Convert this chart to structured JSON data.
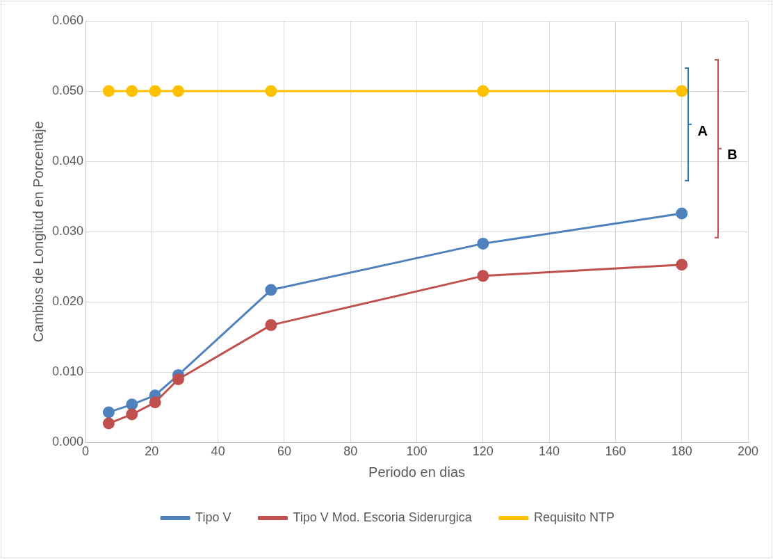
{
  "chart_data": {
    "type": "line",
    "xlabel": "Periodo en dias",
    "ylabel": "Cambios de Longitud en Porcentaje",
    "x": [
      7,
      14,
      21,
      28,
      56,
      120,
      180
    ],
    "series": [
      {
        "name": "Tipo V",
        "color": "#4f81bd",
        "values": [
          0.0043,
          0.0054,
          0.0067,
          0.0096,
          0.0217,
          0.0283,
          0.0326
        ]
      },
      {
        "name": "Tipo V Mod. Escoria Siderurgica",
        "color": "#c0504d",
        "values": [
          0.0027,
          0.004,
          0.0057,
          0.009,
          0.0167,
          0.0237,
          0.0253
        ]
      },
      {
        "name": "Requisito NTP",
        "color": "#ffc000",
        "values": [
          0.05,
          0.05,
          0.05,
          0.05,
          0.05,
          0.05,
          0.05
        ]
      }
    ],
    "xlim": [
      0,
      200
    ],
    "xticks": [
      0,
      20,
      40,
      60,
      80,
      100,
      120,
      140,
      160,
      180,
      200
    ],
    "ylim": [
      0,
      0.06
    ],
    "yticks": [
      {
        "value": 0,
        "label": "0.000"
      },
      {
        "value": 0.01,
        "label": "0.010"
      },
      {
        "value": 0.02,
        "label": "0.020"
      },
      {
        "value": 0.03,
        "label": "0.030"
      },
      {
        "value": 0.04,
        "label": "0.040"
      },
      {
        "value": 0.05,
        "label": "0.050"
      },
      {
        "value": 0.06,
        "label": "0.060"
      }
    ],
    "grid": true,
    "legend": "bottom",
    "marker": "circle",
    "line_style": "solid",
    "annotations": [
      "A",
      "B"
    ]
  }
}
